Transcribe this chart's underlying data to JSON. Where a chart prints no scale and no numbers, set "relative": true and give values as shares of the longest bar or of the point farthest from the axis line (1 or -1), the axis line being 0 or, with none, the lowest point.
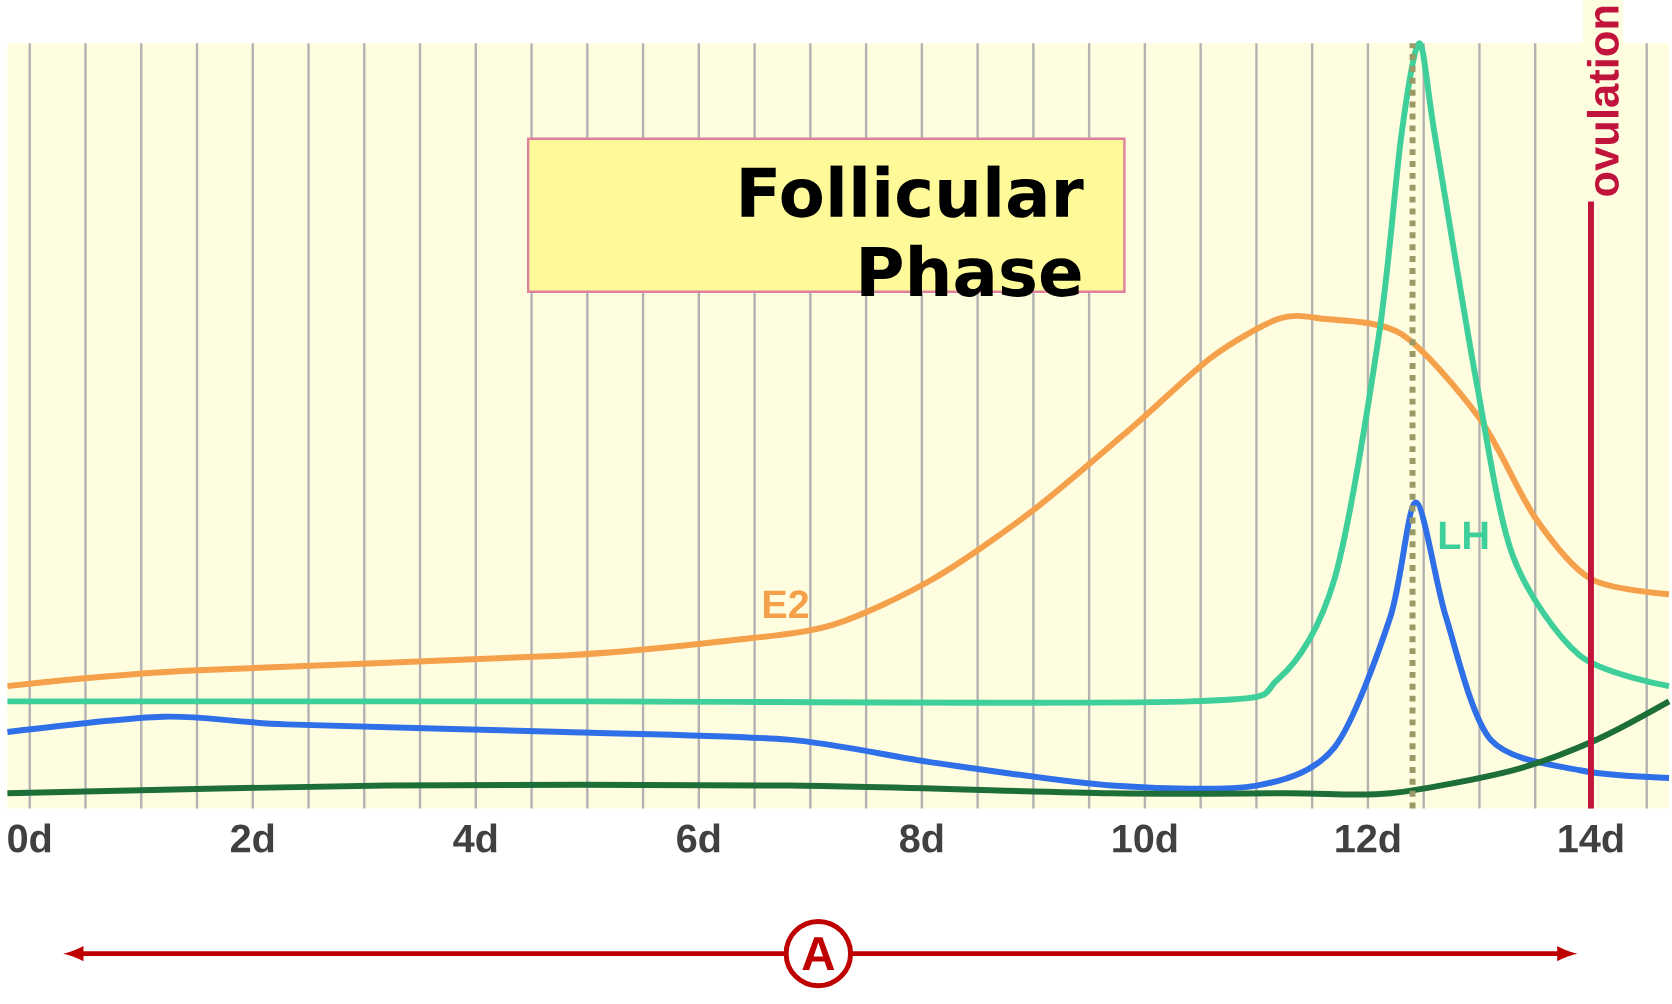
{
  "chart_data": {
    "type": "line",
    "relative": true,
    "xlim": [
      -0.2,
      14.7
    ],
    "xticks": [
      {
        "value": 0,
        "label": "0d"
      },
      {
        "value": 0.5,
        "label": null
      },
      {
        "value": 1,
        "label": null
      },
      {
        "value": 1.5,
        "label": null
      },
      {
        "value": 2,
        "label": "2d"
      },
      {
        "value": 2.5,
        "label": null
      },
      {
        "value": 3,
        "label": null
      },
      {
        "value": 3.5,
        "label": null
      },
      {
        "value": 4,
        "label": "4d"
      },
      {
        "value": 4.5,
        "label": null
      },
      {
        "value": 5,
        "label": null
      },
      {
        "value": 5.5,
        "label": null
      },
      {
        "value": 6,
        "label": "6d"
      },
      {
        "value": 6.5,
        "label": null
      },
      {
        "value": 7,
        "label": null
      },
      {
        "value": 7.5,
        "label": null
      },
      {
        "value": 8,
        "label": "8d"
      },
      {
        "value": 8.5,
        "label": null
      },
      {
        "value": 9,
        "label": null
      },
      {
        "value": 9.5,
        "label": null
      },
      {
        "value": 10,
        "label": "10d"
      },
      {
        "value": 10.5,
        "label": null
      },
      {
        "value": 11,
        "label": null
      },
      {
        "value": 11.5,
        "label": null
      },
      {
        "value": 12,
        "label": "12d"
      },
      {
        "value": 12.5,
        "label": null
      },
      {
        "value": 13,
        "label": null
      },
      {
        "value": 13.5,
        "label": null
      },
      {
        "value": 14,
        "label": "14d"
      },
      {
        "value": 14.5,
        "label": null
      }
    ],
    "grid": "x",
    "marker": "none",
    "line_style": "solid",
    "series": [
      {
        "name": "E2",
        "color": "#f5a04a",
        "x": [
          -0.2,
          1.4,
          4.8,
          6.3,
          7.2,
          8.1,
          9.0,
          9.9,
          10.6,
          11.2,
          11.6,
          12.3,
          13.0,
          13.5,
          14.0,
          14.7
        ],
        "values": [
          0.16,
          0.18,
          0.2,
          0.22,
          0.24,
          0.3,
          0.39,
          0.5,
          0.59,
          0.64,
          0.64,
          0.62,
          0.51,
          0.38,
          0.3,
          0.28
        ]
      },
      {
        "name": "LH",
        "color": "#3ecf9a",
        "x": [
          -0.2,
          5.0,
          10.4,
          11.2,
          11.7,
          12.1,
          12.3,
          12.46,
          12.6,
          12.97,
          13.3,
          13.9,
          14.7
        ],
        "values": [
          0.14,
          0.14,
          0.14,
          0.17,
          0.3,
          0.62,
          0.88,
          1.0,
          0.88,
          0.56,
          0.33,
          0.2,
          0.16
        ]
      },
      {
        "color": "#2f6fe8",
        "x": [
          -0.2,
          1.2,
          2.3,
          4.8,
          6.8,
          8.1,
          9.7,
          11.0,
          11.7,
          12.2,
          12.43,
          12.7,
          13.1,
          13.9,
          14.7
        ],
        "values": [
          0.1,
          0.12,
          0.11,
          0.1,
          0.09,
          0.06,
          0.03,
          0.03,
          0.08,
          0.25,
          0.4,
          0.25,
          0.09,
          0.05,
          0.04
        ]
      },
      {
        "color": "#1e6e3a",
        "x": [
          -0.2,
          3.2,
          6.8,
          9.7,
          11.3,
          12.2,
          13.3,
          14.05,
          14.7
        ],
        "values": [
          0.02,
          0.03,
          0.03,
          0.02,
          0.02,
          0.02,
          0.05,
          0.09,
          0.14
        ]
      }
    ],
    "ref_lines": [
      {
        "axis": "x",
        "value": 12.4,
        "color": "#9a9a66",
        "line_style": "dashed",
        "label": null
      },
      {
        "axis": "x",
        "value": 14,
        "color": "#c0143c",
        "line_style": "solid",
        "label": "ovulation"
      }
    ],
    "annotations": [
      "Follicular Phase",
      "A"
    ]
  }
}
